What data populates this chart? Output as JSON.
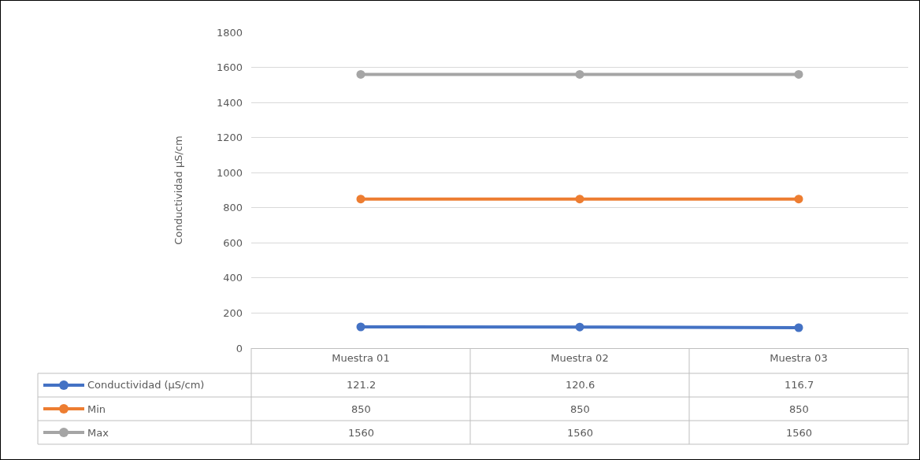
{
  "chart_data": {
    "type": "line",
    "ylabel": "Conductividad µS/cm",
    "categories": [
      "Muestra 01",
      "Muestra 02",
      "Muestra 03"
    ],
    "series": [
      {
        "name": "Conductividad (µS/cm)",
        "color": "#4472c4",
        "values": [
          121.2,
          120.6,
          116.7
        ]
      },
      {
        "name": "Min",
        "color": "#ed7d31",
        "values": [
          850,
          850,
          850
        ]
      },
      {
        "name": "Max",
        "color": "#a5a5a5",
        "values": [
          1560,
          1560,
          1560
        ]
      }
    ],
    "ylim": [
      0,
      1800
    ],
    "yticks": [
      0,
      200,
      400,
      600,
      800,
      1000,
      1200,
      1400,
      1600,
      1800
    ],
    "grid": "y",
    "legend": "bottom",
    "marker": "circle",
    "line_style": "solid",
    "data_labels": true
  }
}
